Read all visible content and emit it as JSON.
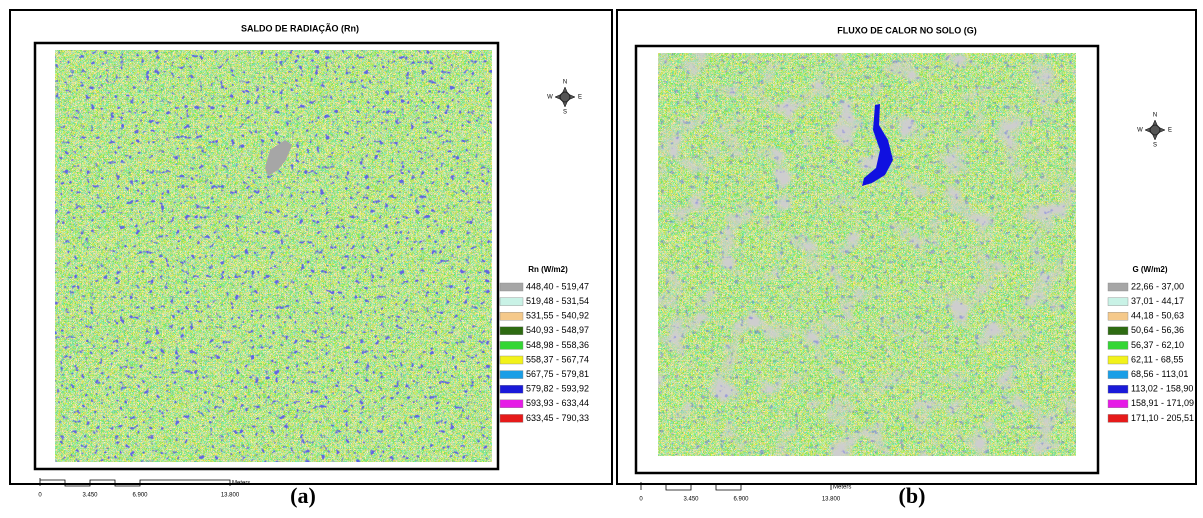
{
  "panels": [
    {
      "title": "SALDO DE RADIAÇÃO (Rn)",
      "compass": {
        "n": "N",
        "s": "S",
        "e": "E",
        "w": "W"
      },
      "legend": {
        "title": "Rn (W/m2)",
        "items": [
          {
            "label": "448,40 - 519,47",
            "color": "#a6a6a6"
          },
          {
            "label": "519,48 - 531,54",
            "color": "#c9f2e6"
          },
          {
            "label": "531,55 - 540,92",
            "color": "#f5c98a"
          },
          {
            "label": "540,93 - 548,97",
            "color": "#2e6b12"
          },
          {
            "label": "548,98 - 558,36",
            "color": "#33d633"
          },
          {
            "label": "558,37 - 567,74",
            "color": "#f2f21a"
          },
          {
            "label": "567,75 - 579,81",
            "color": "#1a9ee6"
          },
          {
            "label": "579,82 - 593,92",
            "color": "#1a1ad9"
          },
          {
            "label": "593,93 - 633,44",
            "color": "#e61ae6"
          },
          {
            "label": "633,45 - 790,33",
            "color": "#e61a1a"
          }
        ]
      },
      "scale": {
        "labels": [
          "0",
          "3.450",
          "6.900",
          "13.800"
        ],
        "unit": "Meters"
      },
      "caption": "(a)"
    },
    {
      "title": "FLUXO DE CALOR NO SOLO (G)",
      "compass": {
        "n": "N",
        "s": "S",
        "e": "E",
        "w": "W"
      },
      "legend": {
        "title": "G (W/m2)",
        "items": [
          {
            "label": "22,66 - 37,00",
            "color": "#a6a6a6"
          },
          {
            "label": "37,01 - 44,17",
            "color": "#c9f2e6"
          },
          {
            "label": "44,18 - 50,63",
            "color": "#f5c98a"
          },
          {
            "label": "50,64 - 56,36",
            "color": "#2e6b12"
          },
          {
            "label": "56,37 - 62,10",
            "color": "#33d633"
          },
          {
            "label": "62,11 - 68,55",
            "color": "#f2f21a"
          },
          {
            "label": "68,56 - 113,01",
            "color": "#1a9ee6"
          },
          {
            "label": "113,02 - 158,90",
            "color": "#1a1ad9"
          },
          {
            "label": "158,91 - 171,09",
            "color": "#e61ae6"
          },
          {
            "label": "171,10 - 205,51",
            "color": "#e61a1a"
          }
        ]
      },
      "scale": {
        "labels": [
          "0",
          "3.450",
          "6.900",
          "13.800"
        ],
        "unit": "Meters"
      },
      "caption": "(b)"
    }
  ]
}
